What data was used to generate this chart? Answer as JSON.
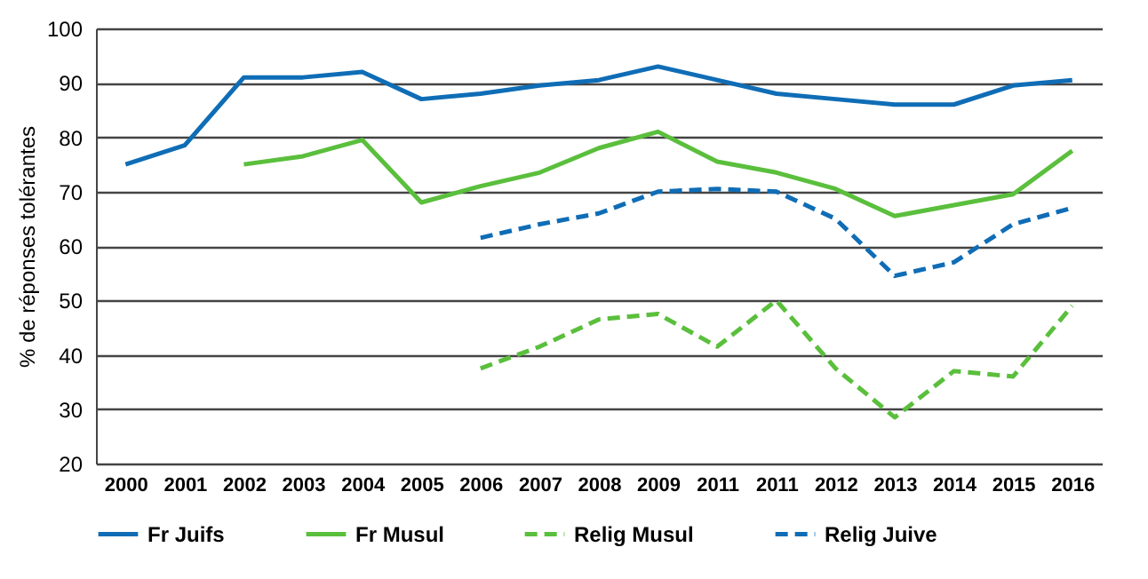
{
  "chart_data": {
    "type": "line",
    "ylabel": "% de  réponses tolérantes",
    "categories": [
      "2000",
      "2001",
      "2002",
      "2003",
      "2004",
      "2005",
      "2006",
      "2007",
      "2008",
      "2009",
      "2011",
      "2011",
      "2012",
      "2013",
      "2014",
      "2015",
      "2016"
    ],
    "series": [
      {
        "name": "Fr Juifs",
        "color": "#0f6db6",
        "line_style": "solid",
        "values": [
          75,
          78.5,
          91,
          91,
          92,
          87,
          88,
          89.5,
          90.5,
          93,
          90.5,
          88,
          87,
          86,
          86,
          89.5,
          90.5
        ]
      },
      {
        "name": "Fr Musul",
        "color": "#5abf3c",
        "line_style": "solid",
        "values": [
          null,
          null,
          75,
          76.5,
          79.5,
          68,
          71,
          73.5,
          78,
          81,
          75.5,
          73.5,
          70.5,
          65.5,
          67.5,
          69.5,
          77.5
        ]
      },
      {
        "name": "Relig Musul",
        "color": "#5abf3c",
        "line_style": "dashed",
        "values": [
          null,
          null,
          null,
          null,
          null,
          null,
          37.5,
          41.5,
          46.5,
          47.5,
          41.5,
          50,
          37.5,
          28.5,
          37,
          36,
          49
        ]
      },
      {
        "name": "Relig Juive",
        "color": "#0f6db6",
        "line_style": "dashed",
        "values": [
          null,
          null,
          null,
          null,
          null,
          null,
          61.5,
          64,
          66,
          70,
          70.5,
          70,
          65,
          54.5,
          57,
          64,
          67
        ]
      }
    ],
    "ylim": [
      20,
      100
    ],
    "yticks": [
      20,
      30,
      40,
      50,
      60,
      70,
      80,
      90,
      100
    ],
    "grid": "y",
    "legend": "bottom",
    "marker": "none"
  }
}
